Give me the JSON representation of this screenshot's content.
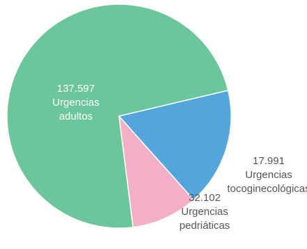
{
  "chart_data": {
    "type": "pie",
    "slices": [
      {
        "value": 137597,
        "value_label": "137.597",
        "label_lines": [
          "Urgencias",
          "adultos"
        ],
        "color": "#6cc69c",
        "label_color": "#ffffff",
        "label_position": "inside"
      },
      {
        "value": 17991,
        "value_label": "17.991",
        "label_lines": [
          "Urgencias",
          "tocoginecológicas"
        ],
        "color": "#f4afc8",
        "label_color": "#555555",
        "label_position": "outside-right"
      },
      {
        "value": 32102,
        "value_label": "32.102",
        "label_lines": [
          "Urgencias",
          "pedriáticas"
        ],
        "color": "#55a5dd",
        "label_color": "#555555",
        "label_position": "outside-bottom"
      }
    ]
  }
}
